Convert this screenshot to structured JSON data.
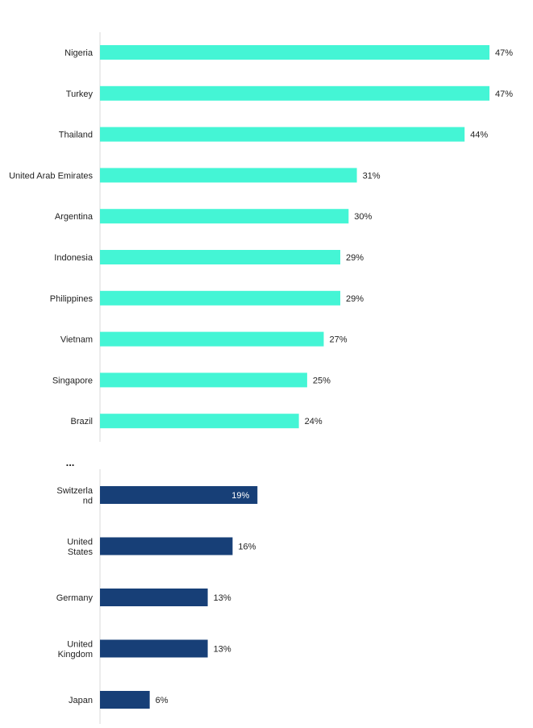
{
  "chart_data": [
    {
      "type": "bar",
      "orientation": "horizontal",
      "categories": [
        "Nigeria",
        "Turkey",
        "Thailand",
        "United Arab Emirates",
        "Argentina",
        "Indonesia",
        "Philippines",
        "Vietnam",
        "Singapore",
        "Brazil"
      ],
      "values": [
        47,
        47,
        44,
        31,
        30,
        29,
        29,
        27,
        25,
        24
      ],
      "value_labels": [
        "47%",
        "47%",
        "44%",
        "31%",
        "30%",
        "29%",
        "29%",
        "27%",
        "25%",
        "24%"
      ],
      "unit": "%",
      "color": "#44F5D5",
      "grid": false,
      "legend": "none"
    },
    {
      "type": "bar",
      "orientation": "horizontal",
      "categories": [
        "Switzerland",
        "United States",
        "Germany",
        "United Kingdom",
        "Japan"
      ],
      "category_label_lines": [
        [
          "Switzerla",
          "nd"
        ],
        [
          "United",
          "States"
        ],
        [
          "Germany"
        ],
        [
          "United",
          "Kingdom"
        ],
        [
          "Japan"
        ]
      ],
      "values": [
        19,
        16,
        13,
        13,
        6
      ],
      "value_labels": [
        "19%",
        "16%",
        "13%",
        "13%",
        "6%"
      ],
      "unit": "%",
      "color": "#173F77",
      "grid": false,
      "legend": "none"
    }
  ],
  "separator_text": "...",
  "colors": {
    "top_series": "#44F5D5",
    "bottom_series": "#173F77",
    "axis": "#D9D9D9",
    "label_text": "#222222",
    "inner_label_text": "#FFFFFF"
  }
}
